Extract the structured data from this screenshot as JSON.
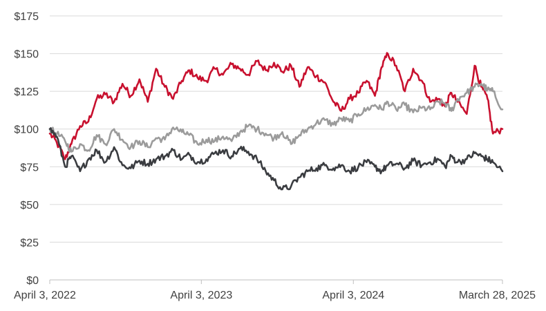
{
  "chart_data": {
    "type": "line",
    "title": "",
    "xlabel": "",
    "ylabel": "",
    "ylim": [
      0,
      175
    ],
    "y_ticks": [
      0,
      25,
      50,
      75,
      100,
      125,
      150,
      175
    ],
    "y_tick_labels": [
      "$0",
      "$25",
      "$50",
      "$75",
      "$100",
      "$125",
      "$150",
      "$175"
    ],
    "x_range": [
      "2022-04-03",
      "2025-03-28"
    ],
    "x_ticks": [
      "2022-04-03",
      "2023-04-03",
      "2024-04-03",
      "2025-03-28"
    ],
    "x_tick_labels": [
      "April 3, 2022",
      "April 3, 2023",
      "April 3, 2024",
      "March 28, 2025"
    ],
    "grid": true,
    "series": [
      {
        "color": "#c8102e",
        "x": [
          "2022-04-03",
          "2022-04-20",
          "2022-05-10",
          "2022-05-25",
          "2022-06-15",
          "2022-07-05",
          "2022-07-25",
          "2022-08-15",
          "2022-09-05",
          "2022-09-25",
          "2022-10-15",
          "2022-11-05",
          "2022-11-25",
          "2022-12-15",
          "2023-01-05",
          "2023-01-25",
          "2023-02-15",
          "2023-03-05",
          "2023-03-25",
          "2023-04-15",
          "2023-05-05",
          "2023-05-25",
          "2023-06-15",
          "2023-07-05",
          "2023-07-25",
          "2023-08-15",
          "2023-09-05",
          "2023-09-25",
          "2023-10-15",
          "2023-11-05",
          "2023-11-25",
          "2023-12-15",
          "2024-01-05",
          "2024-01-25",
          "2024-02-15",
          "2024-03-05",
          "2024-03-25",
          "2024-04-15",
          "2024-05-05",
          "2024-05-25",
          "2024-06-10",
          "2024-06-25",
          "2024-07-15",
          "2024-08-05",
          "2024-08-25",
          "2024-09-15",
          "2024-10-05",
          "2024-10-25",
          "2024-11-10",
          "2024-11-25",
          "2024-12-10",
          "2025-01-01",
          "2025-01-20",
          "2025-02-05",
          "2025-02-20",
          "2025-03-05",
          "2025-03-28"
        ],
        "values": [
          97,
          91,
          80,
          90,
          102,
          105,
          120,
          123,
          118,
          130,
          122,
          133,
          118,
          140,
          128,
          120,
          132,
          139,
          134,
          132,
          140,
          136,
          143,
          140,
          136,
          145,
          139,
          144,
          138,
          142,
          128,
          141,
          135,
          131,
          118,
          112,
          120,
          124,
          132,
          122,
          141,
          150,
          142,
          125,
          140,
          132,
          118,
          120,
          115,
          124,
          118,
          110,
          142,
          128,
          120,
          97,
          100
        ]
      },
      {
        "color": "#9b9b9b",
        "x": [
          "2022-04-03",
          "2022-04-20",
          "2022-05-10",
          "2022-05-25",
          "2022-06-15",
          "2022-07-05",
          "2022-07-25",
          "2022-08-15",
          "2022-09-05",
          "2022-09-25",
          "2022-10-15",
          "2022-11-05",
          "2022-11-25",
          "2022-12-15",
          "2023-01-05",
          "2023-01-25",
          "2023-02-15",
          "2023-03-05",
          "2023-03-25",
          "2023-04-15",
          "2023-05-05",
          "2023-05-25",
          "2023-06-15",
          "2023-07-05",
          "2023-07-25",
          "2023-08-15",
          "2023-09-05",
          "2023-09-25",
          "2023-10-15",
          "2023-11-05",
          "2023-11-25",
          "2023-12-15",
          "2024-01-05",
          "2024-01-25",
          "2024-02-15",
          "2024-03-05",
          "2024-03-25",
          "2024-04-15",
          "2024-05-05",
          "2024-05-25",
          "2024-06-10",
          "2024-06-25",
          "2024-07-15",
          "2024-08-05",
          "2024-08-25",
          "2024-09-15",
          "2024-10-05",
          "2024-10-25",
          "2024-11-10",
          "2024-11-25",
          "2024-12-10",
          "2025-01-01",
          "2025-01-20",
          "2025-02-05",
          "2025-02-20",
          "2025-03-05",
          "2025-03-28"
        ],
        "values": [
          100,
          97,
          92,
          85,
          90,
          86,
          96,
          90,
          100,
          93,
          88,
          92,
          88,
          94,
          93,
          101,
          98,
          96,
          90,
          93,
          92,
          95,
          92,
          98,
          102,
          100,
          97,
          94,
          98,
          90,
          96,
          100,
          104,
          106,
          103,
          107,
          105,
          110,
          113,
          116,
          113,
          118,
          113,
          116,
          111,
          114,
          113,
          118,
          117,
          112,
          120,
          124,
          128,
          130,
          126,
          125,
          113
        ]
      },
      {
        "color": "#3a3c40",
        "x": [
          "2022-04-03",
          "2022-04-20",
          "2022-05-10",
          "2022-05-25",
          "2022-06-15",
          "2022-07-05",
          "2022-07-25",
          "2022-08-15",
          "2022-09-05",
          "2022-09-25",
          "2022-10-15",
          "2022-11-05",
          "2022-11-25",
          "2022-12-15",
          "2023-01-05",
          "2023-01-25",
          "2023-02-15",
          "2023-03-05",
          "2023-03-25",
          "2023-04-15",
          "2023-05-05",
          "2023-05-25",
          "2023-06-15",
          "2023-07-05",
          "2023-07-25",
          "2023-08-15",
          "2023-09-05",
          "2023-09-25",
          "2023-10-15",
          "2023-11-05",
          "2023-11-25",
          "2023-12-15",
          "2024-01-05",
          "2024-01-25",
          "2024-02-15",
          "2024-03-05",
          "2024-03-25",
          "2024-04-15",
          "2024-05-05",
          "2024-05-25",
          "2024-06-10",
          "2024-06-25",
          "2024-07-15",
          "2024-08-05",
          "2024-08-25",
          "2024-09-15",
          "2024-10-05",
          "2024-10-25",
          "2024-11-10",
          "2024-11-25",
          "2024-12-10",
          "2025-01-01",
          "2025-01-20",
          "2025-02-05",
          "2025-02-20",
          "2025-03-05",
          "2025-03-28"
        ],
        "values": [
          100,
          95,
          75,
          82,
          72,
          80,
          86,
          78,
          88,
          76,
          74,
          79,
          77,
          80,
          82,
          86,
          80,
          83,
          78,
          80,
          84,
          86,
          82,
          87,
          85,
          80,
          72,
          66,
          60,
          62,
          68,
          72,
          74,
          76,
          74,
          76,
          72,
          75,
          78,
          75,
          72,
          76,
          77,
          74,
          79,
          76,
          78,
          80,
          75,
          82,
          78,
          80,
          84,
          82,
          80,
          78,
          72
        ]
      }
    ]
  }
}
